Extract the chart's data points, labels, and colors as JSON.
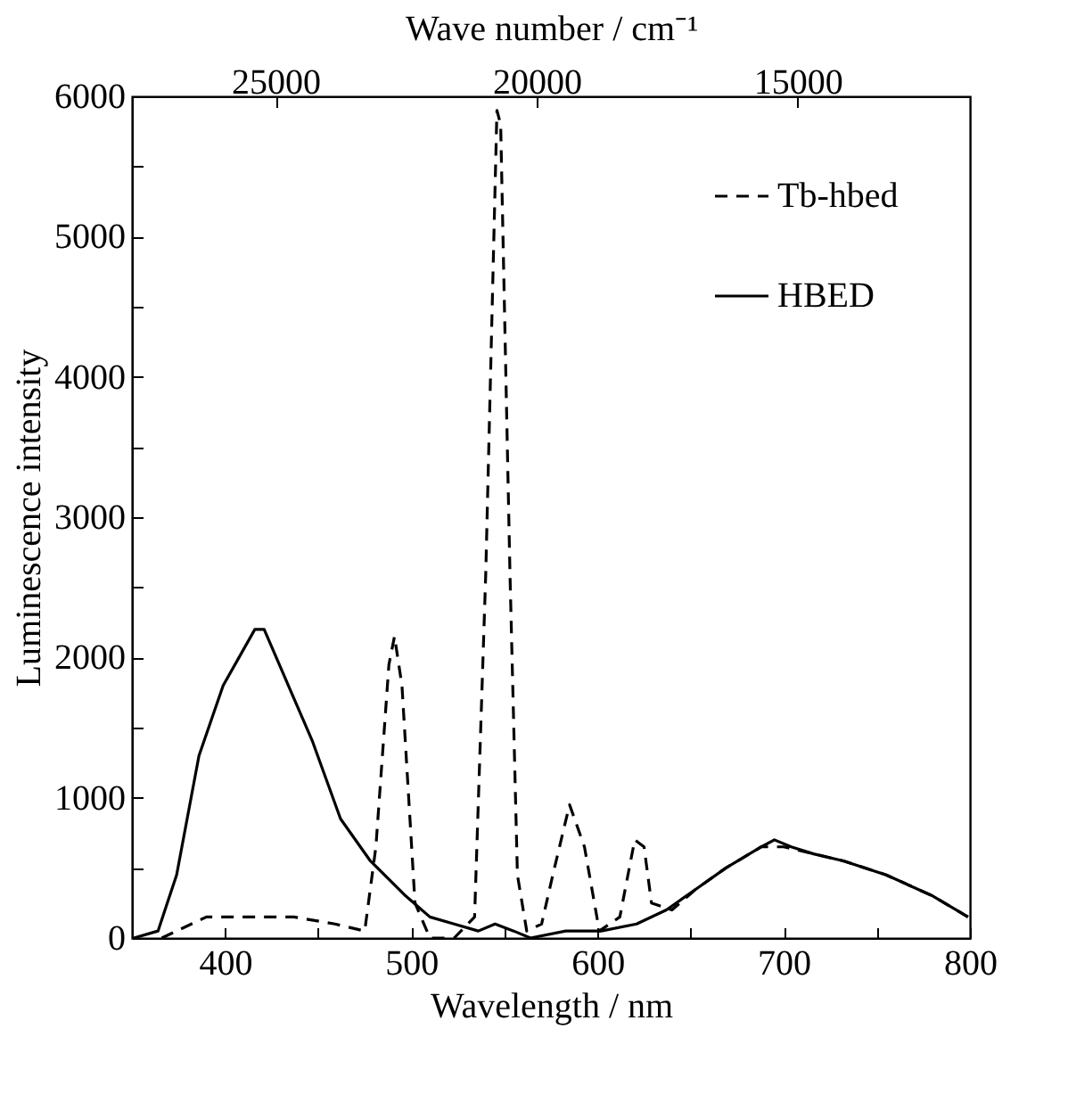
{
  "chart_data": {
    "type": "line",
    "xlabel": "Wavelength / nm",
    "ylabel": "Luminescence intensity",
    "x2label": "Wave number / cm⁻¹",
    "xlim": [
      350,
      800
    ],
    "ylim": [
      0,
      6000
    ],
    "xticks": [
      400,
      {
        "value": 450,
        "label": null
      },
      500,
      {
        "value": 550,
        "label": null
      },
      600,
      {
        "value": 650,
        "label": null
      },
      700,
      {
        "value": 750,
        "label": null
      },
      800
    ],
    "yticks": [
      0,
      {
        "value": 500,
        "label": null
      },
      1000,
      {
        "value": 1500,
        "label": null
      },
      2000,
      {
        "value": 2500,
        "label": null
      },
      3000,
      {
        "value": 3500,
        "label": null
      },
      4000,
      {
        "value": 4500,
        "label": null
      },
      5000,
      {
        "value": 5500,
        "label": null
      },
      6000
    ],
    "x2lim": [
      27750,
      11700
    ],
    "x2ticks": [
      25000,
      20000,
      15000
    ],
    "grid": false,
    "legend": "top right",
    "marker": "none",
    "series": [
      {
        "name": "Tb-hbed",
        "color": "#000000",
        "line_style": "dashed",
        "x": [
          366,
          390,
          415,
          437,
          459,
          475,
          481,
          488,
          491,
          495,
          502,
          510,
          523,
          534,
          540,
          546,
          548,
          553,
          557,
          562,
          570,
          576,
          585,
          593,
          601,
          612,
          620,
          625,
          629,
          640,
          653,
          669,
          688,
          700,
          716,
          732,
          755,
          780,
          799
        ],
        "values": [
          0,
          150,
          150,
          150,
          100,
          50,
          650,
          1950,
          2150,
          1800,
          250,
          0,
          0,
          150,
          2600,
          5900,
          5800,
          2600,
          450,
          50,
          100,
          450,
          950,
          650,
          50,
          150,
          700,
          650,
          250,
          200,
          350,
          500,
          650,
          650,
          600,
          550,
          450,
          300,
          150
        ]
      },
      {
        "name": "HBED",
        "color": "#000000",
        "line_style": "solid",
        "x": [
          351,
          364,
          374,
          386,
          399,
          416,
          421,
          434,
          447,
          462,
          478,
          497,
          510,
          523,
          536,
          545,
          555,
          564,
          583,
          602,
          621,
          637,
          653,
          669,
          688,
          695,
          704,
          716,
          732,
          755,
          780,
          799
        ],
        "values": [
          0,
          50,
          450,
          1300,
          1800,
          2200,
          2200,
          1800,
          1400,
          850,
          550,
          300,
          150,
          100,
          50,
          100,
          50,
          0,
          50,
          50,
          100,
          200,
          350,
          500,
          650,
          700,
          650,
          600,
          550,
          450,
          300,
          150
        ]
      }
    ]
  }
}
